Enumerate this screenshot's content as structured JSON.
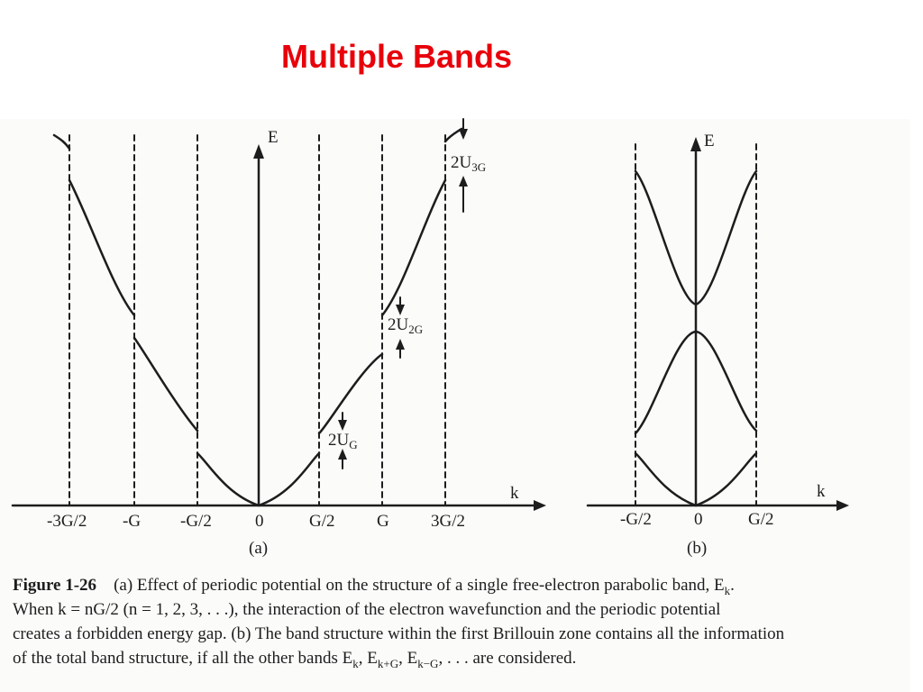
{
  "slide": {
    "title": "Multiple Bands"
  },
  "figure_a": {
    "axis_y_label": "E",
    "axis_x_label": "k",
    "ticks": [
      "-3G/2",
      "-G",
      "-G/2",
      "0",
      "G/2",
      "G",
      "3G/2"
    ],
    "gap_labels": {
      "g1": "2U",
      "g1_sub": "G",
      "g2": "2U",
      "g2_sub": "2G",
      "g3": "2U",
      "g3_sub": "3G"
    },
    "panel_label": "(a)"
  },
  "figure_b": {
    "axis_y_label": "E",
    "axis_x_label": "k",
    "ticks": [
      "-G/2",
      "0",
      "G/2"
    ],
    "panel_label": "(b)"
  },
  "caption": {
    "figure_label": "Figure 1-26",
    "line1": "(a) Effect of periodic potential on the structure of a single free-electron parabolic band, E",
    "line1_sub": "k",
    "line2": "When k = nG/2 (n = 1, 2, 3, . . .), the interaction of the electron wavefunction and the periodic potential",
    "line3": "creates a forbidden energy gap. (b) The band structure within the first Brillouin zone contains all the information",
    "line4": "of the total band structure, if all the other bands E",
    "line4_sub1": "k",
    "line4_mid1": ", E",
    "line4_sub2": "k+G",
    "line4_mid2": ", E",
    "line4_sub3": "k−G",
    "line4_end": ", . . . are considered."
  }
}
